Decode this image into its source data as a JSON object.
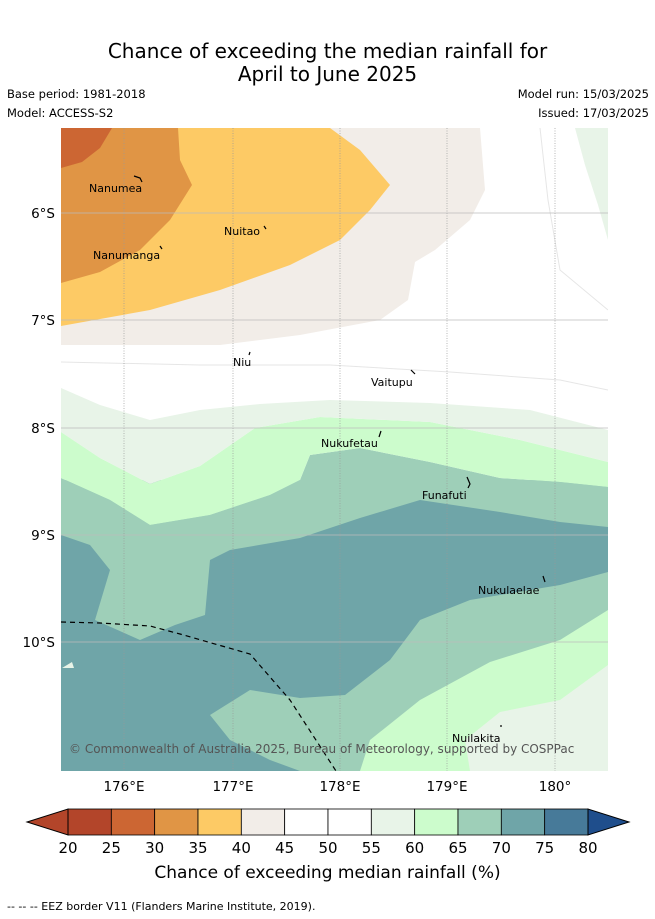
{
  "header": {
    "title_line1": "Chance of exceeding the median rainfall for",
    "title_line2": "April to June 2025",
    "base_period": "Base period: 1981-2018",
    "model": "Model: ACCESS-S2",
    "model_run": "Model run: 15/03/2025",
    "issued": "Issued: 17/03/2025"
  },
  "map": {
    "lat_labels": [
      "6°S",
      "7°S",
      "8°S",
      "9°S",
      "10°S"
    ],
    "lon_labels": [
      "176°E",
      "177°E",
      "178°E",
      "179°E",
      "180°"
    ],
    "places": [
      "Nanumea",
      "Nanumanga",
      "Nuitao",
      "Niu",
      "Vaitupu",
      "Nukufetau",
      "Funafuti",
      "Nukulaelae",
      "Nuilakita"
    ],
    "copyright": "© Commonwealth of Australia 2025, Bureau of Meteorology, supported by COSPPac"
  },
  "legend": {
    "ticks": [
      "20",
      "25",
      "30",
      "35",
      "40",
      "45",
      "50",
      "55",
      "60",
      "65",
      "70",
      "75",
      "80"
    ],
    "colors": [
      "#b3452a",
      "#cc6633",
      "#e09545",
      "#fdca65",
      "#f2ede8",
      "#ffffff",
      "#ffffff",
      "#e8f4e8",
      "#ccfccc",
      "#9ecfb8",
      "#6fa5a8",
      "#477a99"
    ],
    "low_color": "#b3452a",
    "high_color": "#1f4e8c",
    "label": "Chance of exceeding median rainfall (%)"
  },
  "footnote": "--  --  -- EEZ border V11 (Flanders Marine Institute, 2019)."
}
